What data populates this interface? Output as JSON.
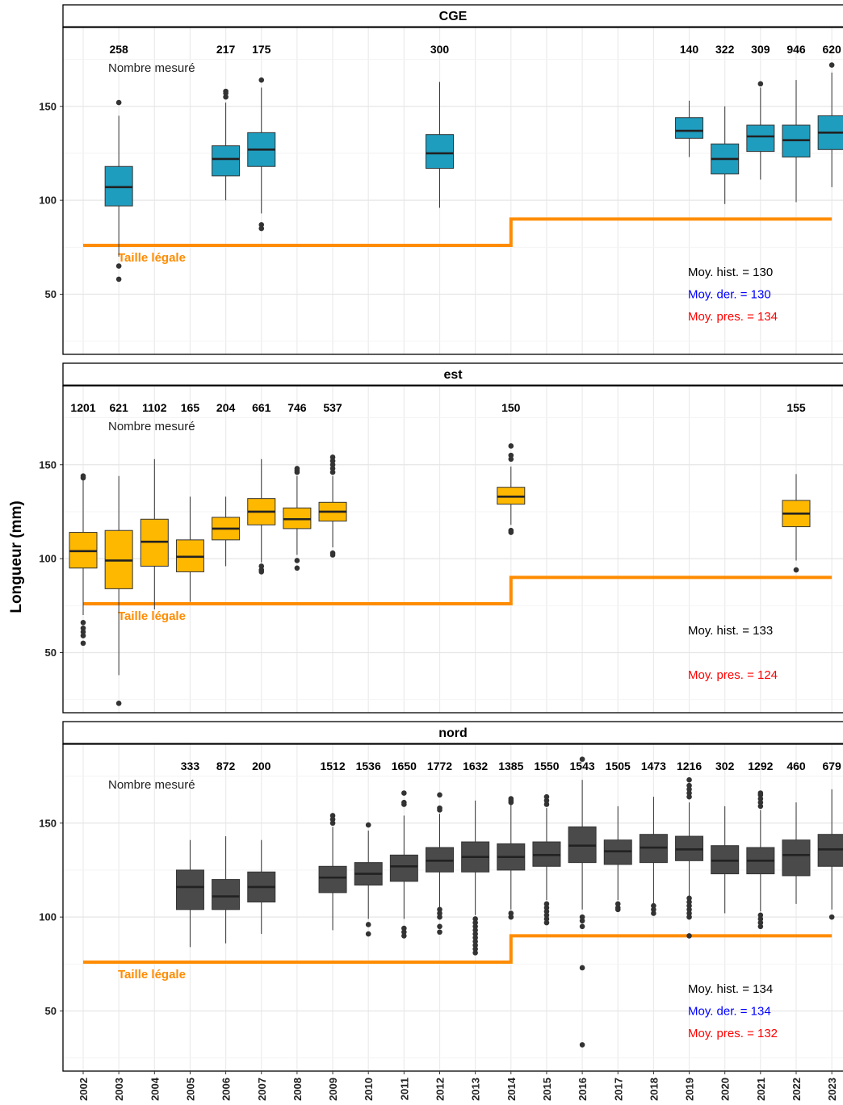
{
  "chart_data": {
    "type": "boxplot",
    "ylabel": "Longueur (mm)",
    "xlabel": "",
    "ylim": [
      18,
      192
    ],
    "yticks": [
      50,
      100,
      150
    ],
    "years": [
      2002,
      2003,
      2004,
      2005,
      2006,
      2007,
      2008,
      2009,
      2010,
      2011,
      2012,
      2013,
      2014,
      2015,
      2016,
      2017,
      2018,
      2019,
      2020,
      2021,
      2022,
      2023
    ],
    "count_caption": "Nombre mesuré",
    "legal_label": "Taille légale",
    "legal_size": [
      {
        "from": 2002,
        "to": 2014,
        "value": 76
      },
      {
        "from": 2014,
        "to": 2023,
        "value": 90
      }
    ],
    "colors": {
      "legal": "#ff8c00",
      "hist": "#000000",
      "der": "#0000ff",
      "pres": "#ff0000"
    },
    "panels": [
      {
        "name": "CGE",
        "color": "#1f9dbe",
        "counts": [
          {
            "year": 2003,
            "label": "258"
          },
          {
            "year": 2006,
            "label": "217"
          },
          {
            "year": 2007,
            "label": "175"
          },
          {
            "year": 2012,
            "label": "300"
          },
          {
            "year": 2019,
            "label": "140"
          },
          {
            "year": 2020,
            "label": "322"
          },
          {
            "year": 2021,
            "label": "309"
          },
          {
            "year": 2022,
            "label": "946"
          },
          {
            "year": 2023,
            "label": "620"
          }
        ],
        "boxes": [
          {
            "year": 2003,
            "wlo": 70,
            "q1": 97,
            "med": 107,
            "q3": 118,
            "whi": 145,
            "outliers": [
              152,
              65,
              58
            ]
          },
          {
            "year": 2006,
            "wlo": 100,
            "q1": 113,
            "med": 122,
            "q3": 129,
            "whi": 152,
            "outliers": [
              155,
              157,
              158
            ]
          },
          {
            "year": 2007,
            "wlo": 93,
            "q1": 118,
            "med": 127,
            "q3": 136,
            "whi": 160,
            "outliers": [
              164,
              87,
              85
            ]
          },
          {
            "year": 2012,
            "wlo": 96,
            "q1": 117,
            "med": 125,
            "q3": 135,
            "whi": 163,
            "outliers": []
          },
          {
            "year": 2019,
            "wlo": 123,
            "q1": 133,
            "med": 137,
            "q3": 144,
            "whi": 153,
            "outliers": []
          },
          {
            "year": 2020,
            "wlo": 98,
            "q1": 114,
            "med": 122,
            "q3": 130,
            "whi": 150,
            "outliers": []
          },
          {
            "year": 2021,
            "wlo": 111,
            "q1": 126,
            "med": 134,
            "q3": 140,
            "whi": 160,
            "outliers": [
              162
            ]
          },
          {
            "year": 2022,
            "wlo": 99,
            "q1": 123,
            "med": 132,
            "q3": 140,
            "whi": 164,
            "outliers": []
          },
          {
            "year": 2023,
            "wlo": 107,
            "q1": 127,
            "med": 136,
            "q3": 145,
            "whi": 168,
            "outliers": [
              172
            ]
          }
        ],
        "moy": [
          {
            "label": "Moy. hist. =",
            "value": "130",
            "kind": "hist"
          },
          {
            "label": "Moy. der. =",
            "value": "130",
            "kind": "der"
          },
          {
            "label": "Moy. pres. =",
            "value": "134",
            "kind": "pres"
          }
        ]
      },
      {
        "name": "est",
        "color": "#ffb800",
        "counts": [
          {
            "year": 2002,
            "label": "1201"
          },
          {
            "year": 2003,
            "label": "621"
          },
          {
            "year": 2004,
            "label": "1102"
          },
          {
            "year": 2005,
            "label": "165"
          },
          {
            "year": 2006,
            "label": "204"
          },
          {
            "year": 2007,
            "label": "661"
          },
          {
            "year": 2008,
            "label": "746"
          },
          {
            "year": 2009,
            "label": "537"
          },
          {
            "year": 2014,
            "label": "150"
          },
          {
            "year": 2022,
            "label": "155"
          }
        ],
        "boxes": [
          {
            "year": 2002,
            "wlo": 70,
            "q1": 95,
            "med": 104,
            "q3": 114,
            "whi": 142,
            "outliers": [
              143,
              144,
              66,
              63,
              61,
              59,
              55
            ]
          },
          {
            "year": 2003,
            "wlo": 38,
            "q1": 84,
            "med": 99,
            "q3": 115,
            "whi": 144,
            "outliers": [
              23
            ]
          },
          {
            "year": 2004,
            "wlo": 73,
            "q1": 96,
            "med": 109,
            "q3": 121,
            "whi": 153,
            "outliers": []
          },
          {
            "year": 2005,
            "wlo": 77,
            "q1": 93,
            "med": 101,
            "q3": 110,
            "whi": 133,
            "outliers": []
          },
          {
            "year": 2006,
            "wlo": 96,
            "q1": 110,
            "med": 116,
            "q3": 122,
            "whi": 133,
            "outliers": []
          },
          {
            "year": 2007,
            "wlo": 98,
            "q1": 118,
            "med": 125,
            "q3": 132,
            "whi": 153,
            "outliers": [
              96,
              94,
              93
            ]
          },
          {
            "year": 2008,
            "wlo": 102,
            "q1": 116,
            "med": 121,
            "q3": 127,
            "whi": 144,
            "outliers": [
              146,
              147,
              148,
              99,
              95
            ]
          },
          {
            "year": 2009,
            "wlo": 106,
            "q1": 120,
            "med": 125,
            "q3": 130,
            "whi": 144,
            "outliers": [
              146,
              148,
              150,
              152,
              154,
              103,
              102
            ]
          },
          {
            "year": 2014,
            "wlo": 118,
            "q1": 129,
            "med": 133,
            "q3": 138,
            "whi": 149,
            "outliers": [
              160,
              155,
              153,
              115,
              114
            ]
          },
          {
            "year": 2022,
            "wlo": 99,
            "q1": 117,
            "med": 124,
            "q3": 131,
            "whi": 145,
            "outliers": [
              94
            ]
          }
        ],
        "moy": [
          {
            "label": "Moy. hist. =",
            "value": "133",
            "kind": "hist"
          },
          {
            "label": "Moy. pres. =",
            "value": "124",
            "kind": "pres"
          }
        ]
      },
      {
        "name": "nord",
        "color": "#4a4a4a",
        "counts": [
          {
            "year": 2005,
            "label": "333"
          },
          {
            "year": 2006,
            "label": "872"
          },
          {
            "year": 2007,
            "label": "200"
          },
          {
            "year": 2009,
            "label": "1512"
          },
          {
            "year": 2010,
            "label": "1536"
          },
          {
            "year": 2011,
            "label": "1650"
          },
          {
            "year": 2012,
            "label": "1772"
          },
          {
            "year": 2013,
            "label": "1632"
          },
          {
            "year": 2014,
            "label": "1385"
          },
          {
            "year": 2015,
            "label": "1550"
          },
          {
            "year": 2016,
            "label": "1543"
          },
          {
            "year": 2017,
            "label": "1505"
          },
          {
            "year": 2018,
            "label": "1473"
          },
          {
            "year": 2019,
            "label": "1216"
          },
          {
            "year": 2020,
            "label": "302"
          },
          {
            "year": 2021,
            "label": "1292"
          },
          {
            "year": 2022,
            "label": "460"
          },
          {
            "year": 2023,
            "label": "679"
          }
        ],
        "boxes": [
          {
            "year": 2005,
            "wlo": 84,
            "q1": 104,
            "med": 116,
            "q3": 125,
            "whi": 141,
            "outliers": []
          },
          {
            "year": 2006,
            "wlo": 86,
            "q1": 104,
            "med": 111,
            "q3": 120,
            "whi": 143,
            "outliers": []
          },
          {
            "year": 2007,
            "wlo": 91,
            "q1": 108,
            "med": 116,
            "q3": 124,
            "whi": 141,
            "outliers": []
          },
          {
            "year": 2009,
            "wlo": 93,
            "q1": 113,
            "med": 121,
            "q3": 127,
            "whi": 148,
            "outliers": [
              150,
              152,
              154
            ]
          },
          {
            "year": 2010,
            "wlo": 99,
            "q1": 117,
            "med": 123,
            "q3": 129,
            "whi": 146,
            "outliers": [
              149,
              96,
              91
            ]
          },
          {
            "year": 2011,
            "wlo": 99,
            "q1": 119,
            "med": 127,
            "q3": 133,
            "whi": 154,
            "outliers": [
              160,
              161,
              166,
              94,
              92,
              90
            ]
          },
          {
            "year": 2012,
            "wlo": 105,
            "q1": 124,
            "med": 130,
            "q3": 137,
            "whi": 155,
            "outliers": [
              157,
              158,
              165,
              104,
              102,
              100,
              95,
              92
            ]
          },
          {
            "year": 2013,
            "wlo": 101,
            "q1": 124,
            "med": 132,
            "q3": 140,
            "whi": 162,
            "outliers": [
              99,
              97,
              95,
              93,
              91,
              89,
              87,
              85,
              83,
              81
            ]
          },
          {
            "year": 2014,
            "wlo": 104,
            "q1": 125,
            "med": 132,
            "q3": 139,
            "whi": 160,
            "outliers": [
              161,
              162,
              163,
              102,
              100
            ]
          },
          {
            "year": 2015,
            "wlo": 109,
            "q1": 127,
            "med": 133,
            "q3": 140,
            "whi": 158,
            "outliers": [
              160,
              162,
              164,
              107,
              105,
              103,
              101,
              99,
              97
            ]
          },
          {
            "year": 2016,
            "wlo": 104,
            "q1": 129,
            "med": 138,
            "q3": 148,
            "whi": 173,
            "outliers": [
              184,
              100,
              98,
              95,
              73,
              32
            ]
          },
          {
            "year": 2017,
            "wlo": 109,
            "q1": 128,
            "med": 135,
            "q3": 141,
            "whi": 159,
            "outliers": [
              107,
              105,
              104
            ]
          },
          {
            "year": 2018,
            "wlo": 107,
            "q1": 129,
            "med": 137,
            "q3": 144,
            "whi": 164,
            "outliers": [
              106,
              104,
              102
            ]
          },
          {
            "year": 2019,
            "wlo": 111,
            "q1": 130,
            "med": 136,
            "q3": 143,
            "whi": 161,
            "outliers": [
              164,
              166,
              168,
              170,
              173,
              110,
              108,
              106,
              104,
              102,
              100,
              90
            ]
          },
          {
            "year": 2020,
            "wlo": 102,
            "q1": 123,
            "med": 130,
            "q3": 138,
            "whi": 159,
            "outliers": []
          },
          {
            "year": 2021,
            "wlo": 103,
            "q1": 123,
            "med": 130,
            "q3": 137,
            "whi": 157,
            "outliers": [
              159,
              161,
              163,
              165,
              166,
              101,
              99,
              97,
              95
            ]
          },
          {
            "year": 2022,
            "wlo": 107,
            "q1": 122,
            "med": 133,
            "q3": 141,
            "whi": 161,
            "outliers": []
          },
          {
            "year": 2023,
            "wlo": 104,
            "q1": 127,
            "med": 136,
            "q3": 144,
            "whi": 168,
            "outliers": [
              100
            ]
          }
        ],
        "moy": [
          {
            "label": "Moy. hist. =",
            "value": "134",
            "kind": "hist"
          },
          {
            "label": "Moy. der. =",
            "value": "134",
            "kind": "der"
          },
          {
            "label": "Moy. pres. =",
            "value": "132",
            "kind": "pres"
          }
        ]
      }
    ]
  }
}
